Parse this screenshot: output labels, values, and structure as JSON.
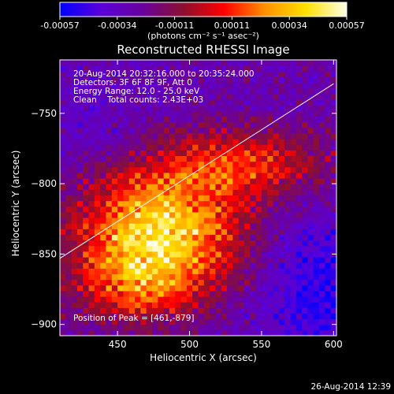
{
  "chart_data": {
    "type": "heatmap",
    "title": "Reconstructed RHESSI Image",
    "xlabel": "Heliocentric X (arcsec)",
    "ylabel": "Heliocentric Y (arcsec)",
    "xlim": [
      410,
      602
    ],
    "ylim": [
      -908,
      -712
    ],
    "x_ticks": [
      450,
      500,
      550,
      600
    ],
    "y_ticks": [
      -750,
      -800,
      -850,
      -900
    ],
    "colorbar": {
      "min": -0.00057,
      "max": 0.00057,
      "ticks": [
        "-0.00057",
        "-0.00034",
        "-0.00011",
        "0.00011",
        "0.00034",
        "0.00057"
      ],
      "unit": "(photons cm⁻² s⁻¹ asec⁻²)",
      "colors": [
        "#0000ff",
        "#5a00d8",
        "#6a00a0",
        "#8a1030",
        "#ff0000",
        "#ff9000",
        "#ffe000",
        "#ffffe8"
      ]
    },
    "annotations": [
      "20-Aug-2014 20:32:16.000 to 20:35:24.000",
      "Detectors: 3F 6F 8F 9F, Att 0",
      "Energy Range: 12.0 - 25.0 keV",
      "Clean    Total counts: 2.43E+03"
    ],
    "peak_label": "Position of Peak = [461,-879]",
    "peak": [
      461,
      -879
    ],
    "limb": [
      [
        410,
        -853
      ],
      [
        600,
        -729
      ]
    ],
    "grid": false
  },
  "footer_timestamp": "26-Aug-2014 12:39"
}
